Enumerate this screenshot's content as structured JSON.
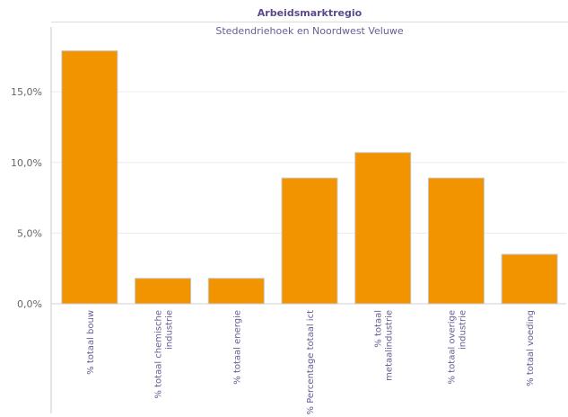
{
  "header": {
    "title": "Arbeidsmarktregio",
    "subtitle": "Stedendriehoek en Noordwest Veluwe"
  },
  "chart_data": {
    "type": "bar",
    "categories": [
      [
        "% totaal bouw"
      ],
      [
        "% totaal chemische",
        "industrie"
      ],
      [
        "% totaal energie"
      ],
      [
        "% Percentage totaal ict"
      ],
      [
        "% totaal",
        "metaalindustrie"
      ],
      [
        "% totaal overige",
        "industrie"
      ],
      [
        "% totaal voeding"
      ]
    ],
    "values": [
      17.9,
      1.8,
      1.8,
      8.9,
      10.7,
      8.9,
      3.5
    ],
    "y_ticks": [
      {
        "value": 0,
        "label": "0,0%"
      },
      {
        "value": 5,
        "label": "5,0%"
      },
      {
        "value": 10,
        "label": "10,0%"
      },
      {
        "value": 15,
        "label": "15,0%"
      }
    ],
    "ylim": [
      0,
      18.7
    ],
    "grid": true,
    "bar_color": "#f29400",
    "bar_edge_color": "#c8c8c8",
    "label_color": "#6a5d93",
    "tick_color": "#666666"
  }
}
